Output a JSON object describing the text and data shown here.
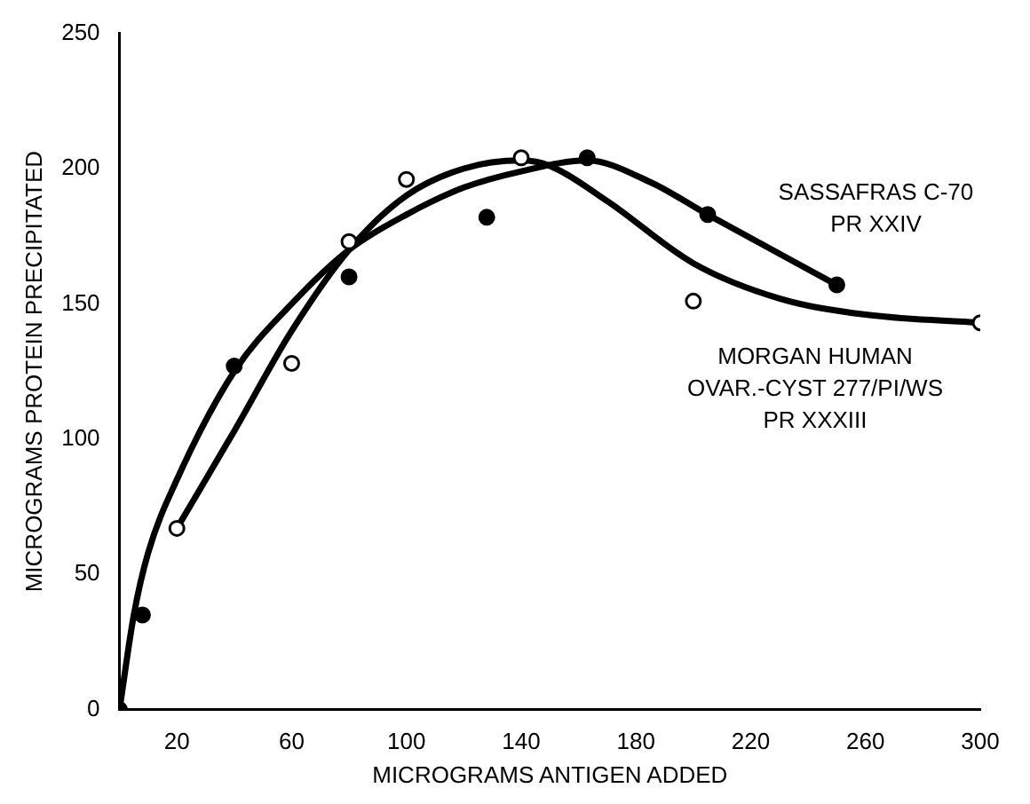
{
  "chart_data": {
    "type": "scatter",
    "xlabel": "MICROGRAMS ANTIGEN ADDED",
    "ylabel": "MICROGRAMS PROTEIN PRECIPITATED",
    "xlim": [
      0,
      300
    ],
    "xticks": [
      20,
      60,
      100,
      140,
      180,
      220,
      260,
      300
    ],
    "ylim": [
      0,
      250
    ],
    "yticks": [
      0,
      50,
      100,
      150,
      200,
      250
    ],
    "grid": false,
    "legend": false,
    "series": [
      {
        "marker": "circle",
        "color": "#000000",
        "x": [
          0,
          8,
          40,
          80,
          128,
          163,
          205,
          250
        ],
        "values": [
          0,
          35,
          127,
          160,
          182,
          204,
          183,
          157
        ]
      },
      {
        "marker": "circle",
        "color": "#000000",
        "x": [
          20,
          60,
          80,
          100,
          140,
          200,
          300
        ],
        "values": [
          67,
          128,
          173,
          196,
          204,
          151,
          143
        ]
      },
      {
        "type": "line",
        "marker": "none",
        "name": "SASSAFRAS C-70\nPR XXIV",
        "color": "#000000",
        "x": [
          0,
          5,
          10,
          20,
          40,
          60,
          80,
          100,
          120,
          140,
          163,
          185,
          205,
          250
        ],
        "values": [
          0,
          35,
          58,
          85,
          125,
          150,
          170,
          183,
          193,
          199,
          203,
          195,
          183,
          157
        ]
      },
      {
        "type": "line",
        "marker": "none",
        "name": "MORGAN HUMAN\nOVAR.-CYST 277/PI/WS\nPR XXXIII",
        "color": "#000000",
        "x": [
          20,
          40,
          60,
          80,
          100,
          120,
          140,
          150,
          170,
          200,
          230,
          260,
          300
        ],
        "values": [
          67,
          103,
          140,
          170,
          190,
          200,
          203,
          201,
          188,
          165,
          152,
          146,
          143
        ]
      }
    ]
  }
}
